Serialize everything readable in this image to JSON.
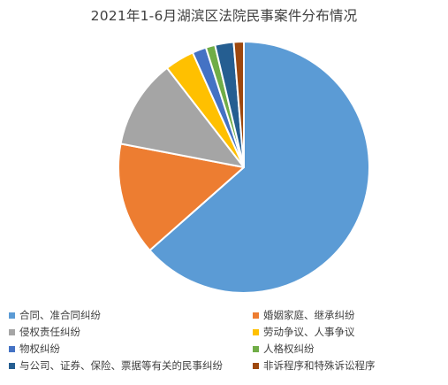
{
  "chart_data": {
    "type": "pie",
    "title": "2021年1-6月湖滨区法院民事案件分布情况",
    "legend_position": "bottom",
    "start_angle_deg": 0,
    "direction": "clockwise",
    "slices": [
      {
        "label": "合同、准合同纠纷",
        "value": 63.5,
        "color": "#5B9BD5"
      },
      {
        "label": "婚姻家庭、继承纠纷",
        "value": 14.5,
        "color": "#ED7D31"
      },
      {
        "label": "侵权责任纠纷",
        "value": 11.5,
        "color": "#A5A5A5"
      },
      {
        "label": "劳动争议、人事争议",
        "value": 3.8,
        "color": "#FFC000"
      },
      {
        "label": "物权纠纷",
        "value": 1.8,
        "color": "#4472C4"
      },
      {
        "label": "人格权纠纷",
        "value": 1.2,
        "color": "#70AD47"
      },
      {
        "label": "与公司、证券、保险、票据等有关的民事纠纷",
        "value": 2.4,
        "color": "#255E91"
      },
      {
        "label": "非诉程序和特殊诉讼程序",
        "value": 1.3,
        "color": "#9E480E"
      }
    ]
  }
}
